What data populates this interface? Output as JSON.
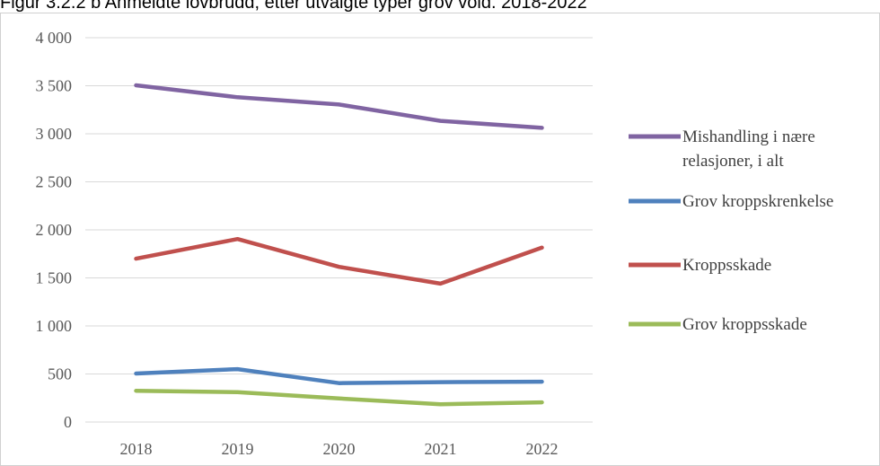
{
  "chart_data": {
    "type": "line",
    "title": "Figur 3.2.2 b Anmeldte lovbrudd, etter utvalgte typer grov vold. 2018-2022",
    "categories": [
      "2018",
      "2019",
      "2020",
      "2021",
      "2022"
    ],
    "y_ticks": [
      "0",
      "500",
      "1 000",
      "1 500",
      "2 000",
      "2 500",
      "3 000",
      "3 500",
      "4 000"
    ],
    "ylim": [
      0,
      4000
    ],
    "grid": true,
    "legend_position": "right",
    "series": [
      {
        "name": "Mishandling i nære relasjoner, i alt",
        "label_lines": [
          "Mishandling i nære",
          "relasjoner, i alt"
        ],
        "color": "#8064a2",
        "values": [
          3505,
          3380,
          3305,
          3135,
          3062
        ]
      },
      {
        "name": "Grov kroppskrenkelse",
        "label_lines": [
          "Grov kroppskrenkelse"
        ],
        "color": "#4f81bd",
        "values": [
          505,
          550,
          405,
          415,
          420
        ]
      },
      {
        "name": "Kroppsskade",
        "label_lines": [
          "Kroppsskade"
        ],
        "color": "#c0504d",
        "values": [
          1700,
          1905,
          1615,
          1440,
          1815
        ]
      },
      {
        "name": "Grov kroppsskade",
        "label_lines": [
          "Grov kroppsskade"
        ],
        "color": "#9bbb59",
        "values": [
          325,
          310,
          245,
          185,
          205
        ]
      }
    ]
  }
}
